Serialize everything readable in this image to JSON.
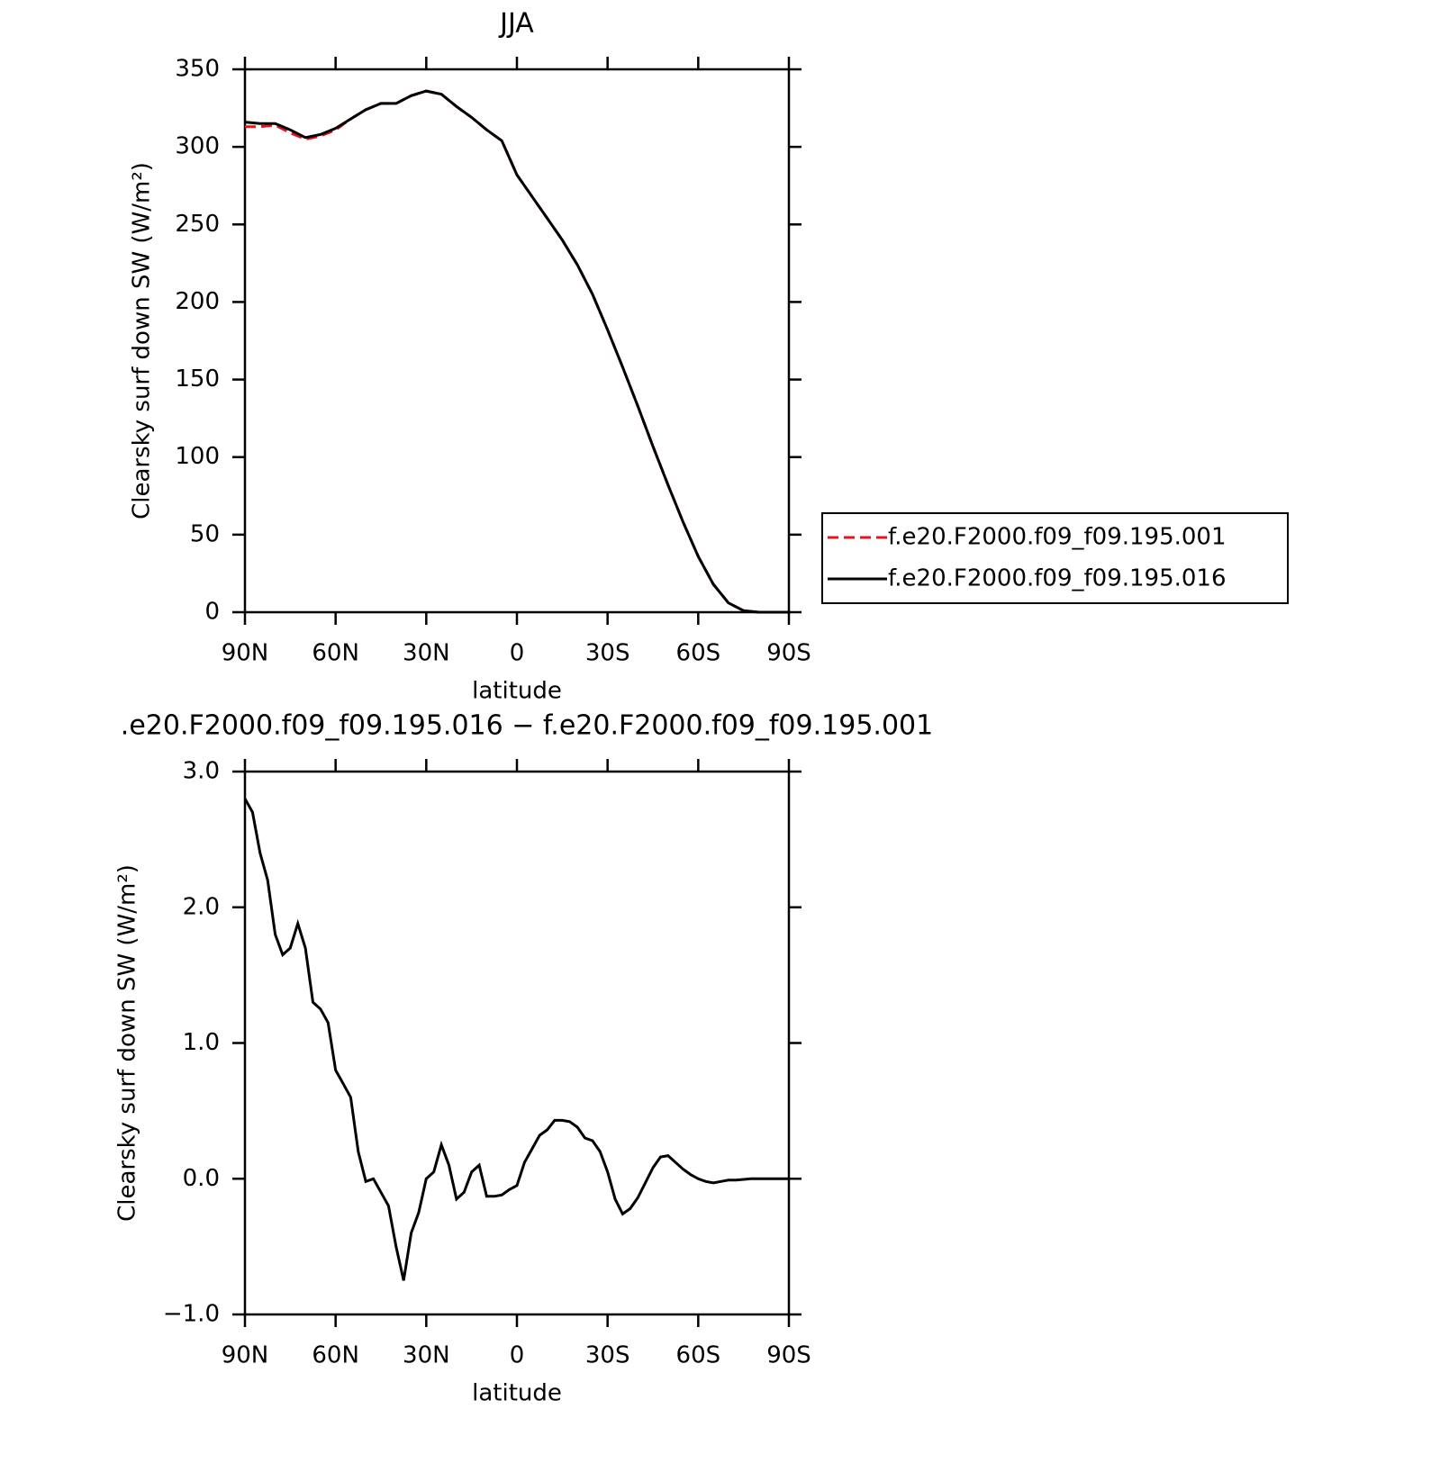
{
  "chart_data": [
    {
      "type": "line",
      "title": "JJA",
      "xlabel": "latitude",
      "ylabel": "Clearsky surf down SW (W/m²)",
      "x": [
        90,
        85,
        80,
        75,
        70,
        65,
        60,
        55,
        50,
        45,
        40,
        35,
        30,
        25,
        20,
        15,
        10,
        5,
        0,
        -5,
        -10,
        -15,
        -20,
        -25,
        -30,
        -35,
        -40,
        -45,
        -50,
        -55,
        -60,
        -65,
        -70,
        -75,
        -80,
        -85,
        -90
      ],
      "xlim": [
        90,
        -90
      ],
      "xticks": [
        {
          "value": 90,
          "label": "90N"
        },
        {
          "value": 60,
          "label": "60N"
        },
        {
          "value": 30,
          "label": "30N"
        },
        0,
        {
          "value": -30,
          "label": "30S"
        },
        {
          "value": -60,
          "label": "60S"
        },
        {
          "value": -90,
          "label": "90S"
        }
      ],
      "ylim": [
        0,
        350
      ],
      "yticks": [
        0,
        50,
        100,
        150,
        200,
        250,
        300,
        350
      ],
      "legend": "outside-right",
      "series": [
        {
          "name": "f.e20.F2000.f09_f09.195.001",
          "color": "#e8141c",
          "dash": "dashed",
          "values": [
            313,
            313,
            314,
            309,
            305,
            307,
            311,
            318,
            324,
            328,
            328,
            333,
            336,
            334,
            326,
            319,
            311,
            304,
            282,
            268,
            254,
            240,
            224,
            205,
            182,
            158,
            133,
            107,
            82,
            58,
            36,
            18,
            6,
            1,
            0,
            0,
            0
          ]
        },
        {
          "name": "f.e20.F2000.f09_f09.195.016",
          "color": "#000000",
          "dash": "solid",
          "values": [
            316,
            315,
            315,
            311,
            306,
            308,
            312,
            318,
            324,
            328,
            328,
            333,
            336,
            334,
            326,
            319,
            311,
            304,
            282,
            268,
            254,
            240,
            224,
            205,
            182,
            158,
            133,
            107,
            82,
            58,
            36,
            18,
            6,
            1,
            0,
            0,
            0
          ]
        }
      ]
    },
    {
      "type": "line",
      "title": ".e20.F2000.f09_f09.195.016 − f.e20.F2000.f09_f09.195.001",
      "xlabel": "latitude",
      "ylabel": "Clearsky surf down SW (W/m²)",
      "x": [
        90,
        87.5,
        85,
        82.5,
        80,
        77.5,
        75,
        72.5,
        70,
        67.5,
        65,
        62.5,
        60,
        57.5,
        55,
        52.5,
        50,
        47.5,
        45,
        42.5,
        40,
        37.5,
        35,
        32.5,
        30,
        27.5,
        25,
        22.5,
        20,
        17.5,
        15,
        12.5,
        10,
        7.5,
        5,
        2.5,
        0,
        -2.5,
        -5,
        -7.5,
        -10,
        -12.5,
        -15,
        -17.5,
        -20,
        -22.5,
        -25,
        -27.5,
        -30,
        -32.5,
        -35,
        -37.5,
        -40,
        -42.5,
        -45,
        -47.5,
        -50,
        -52.5,
        -55,
        -57.5,
        -60,
        -62.5,
        -65,
        -67.5,
        -70,
        -72.5,
        -75,
        -77.5,
        -80,
        -82.5,
        -85,
        -87.5,
        -90
      ],
      "xlim": [
        90,
        -90
      ],
      "xticks": [
        {
          "value": 90,
          "label": "90N"
        },
        {
          "value": 60,
          "label": "60N"
        },
        {
          "value": 30,
          "label": "30N"
        },
        0,
        {
          "value": -30,
          "label": "30S"
        },
        {
          "value": -60,
          "label": "60S"
        },
        {
          "value": -90,
          "label": "90S"
        }
      ],
      "ylim": [
        -1,
        3
      ],
      "yticks": [
        {
          "value": -1,
          "label": "−1.0"
        },
        {
          "value": 0,
          "label": "0.0"
        },
        {
          "value": 1,
          "label": "1.0"
        },
        {
          "value": 2,
          "label": "2.0"
        },
        {
          "value": 3,
          "label": "3.0"
        }
      ],
      "color": "#000000",
      "values": [
        2.8,
        2.7,
        2.4,
        2.2,
        1.8,
        1.65,
        1.7,
        1.88,
        1.7,
        1.3,
        1.25,
        1.15,
        0.8,
        0.7,
        0.6,
        0.2,
        -0.02,
        0.0,
        -0.1,
        -0.2,
        -0.5,
        -0.75,
        -0.4,
        -0.25,
        0.0,
        0.05,
        0.25,
        0.1,
        -0.15,
        -0.1,
        0.05,
        0.1,
        -0.13,
        -0.13,
        -0.12,
        -0.08,
        -0.05,
        0.12,
        0.22,
        0.32,
        0.36,
        0.43,
        0.43,
        0.42,
        0.38,
        0.3,
        0.28,
        0.2,
        0.05,
        -0.15,
        -0.26,
        -0.22,
        -0.14,
        -0.03,
        0.08,
        0.16,
        0.17,
        0.12,
        0.07,
        0.03,
        0.0,
        -0.02,
        -0.03,
        -0.02,
        -0.01,
        -0.01,
        -0.005,
        0,
        0,
        0,
        0,
        0,
        0
      ]
    }
  ]
}
